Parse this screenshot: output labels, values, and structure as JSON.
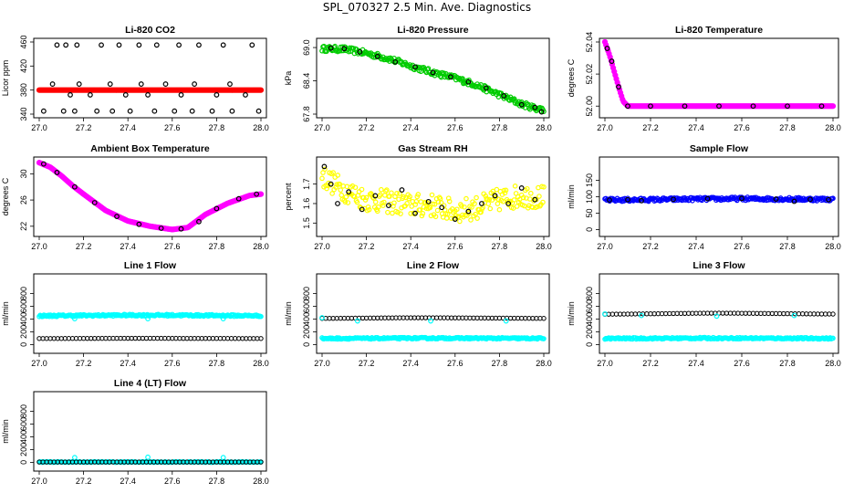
{
  "page": {
    "title": "SPL_070327  2.5 Min. Ave. Diagnostics"
  },
  "chart_data": [
    {
      "type": "scatter",
      "title": "Li-820 CO2",
      "ylabel": "Licor ppm",
      "xlim": [
        27.0,
        28.0
      ],
      "ylim": [
        340,
        460
      ],
      "xticks": [
        "27.0",
        "27.2",
        "27.4",
        "27.6",
        "27.8",
        "28.0"
      ],
      "yticks": [
        "340",
        "380",
        "420",
        "460"
      ],
      "series": [
        {
          "color": "#ff0000",
          "style": "line",
          "x": [
            27.0,
            27.2,
            27.4,
            27.6,
            27.8,
            28.0
          ],
          "y": [
            380,
            380,
            380,
            380,
            380,
            380
          ]
        },
        {
          "color": "#000000",
          "style": "points",
          "x": [
            27.08,
            27.12,
            27.17,
            27.28,
            27.36,
            27.45,
            27.53,
            27.63,
            27.72,
            27.83,
            27.96
          ],
          "y": [
            455,
            455,
            455,
            455,
            455,
            455,
            455,
            455,
            455,
            455,
            455
          ]
        },
        {
          "color": "#000000",
          "style": "points",
          "x": [
            27.02,
            27.11,
            27.16,
            27.26,
            27.33,
            27.41,
            27.52,
            27.61,
            27.69,
            27.78,
            27.87,
            27.99
          ],
          "y": [
            345,
            345,
            345,
            345,
            345,
            345,
            345,
            345,
            345,
            345,
            345,
            345
          ]
        },
        {
          "color": "#000000",
          "style": "points",
          "x": [
            27.06,
            27.14,
            27.18,
            27.23,
            27.32,
            27.39,
            27.46,
            27.49,
            27.57,
            27.64,
            27.7,
            27.8,
            27.86,
            27.93
          ],
          "y": [
            390,
            372,
            390,
            372,
            390,
            372,
            390,
            372,
            390,
            372,
            390,
            372,
            390,
            372
          ]
        }
      ]
    },
    {
      "type": "scatter",
      "title": "Li-820 Pressure",
      "ylabel": "kPa",
      "xlim": [
        27.0,
        28.0
      ],
      "ylim": [
        67.8,
        69.1
      ],
      "xticks": [
        "27.0",
        "27.2",
        "27.4",
        "27.6",
        "27.8",
        "28.0"
      ],
      "yticks": [
        "67.8",
        "68.4",
        "69.0"
      ],
      "series": [
        {
          "color": "#00cc00",
          "style": "band",
          "x": [
            27.0,
            27.1,
            27.2,
            27.3,
            27.4,
            27.5,
            27.6,
            27.7,
            27.8,
            27.9,
            27.95,
            28.0
          ],
          "y": [
            68.98,
            68.97,
            68.9,
            68.8,
            68.67,
            68.55,
            68.45,
            68.32,
            68.15,
            67.98,
            67.92,
            67.88
          ],
          "spread": 0.05
        },
        {
          "color": "#000000",
          "style": "points",
          "x": [
            27.04,
            27.1,
            27.17,
            27.25,
            27.33,
            27.42,
            27.5,
            27.58,
            27.66,
            27.74,
            27.82,
            27.9,
            27.96,
            27.99
          ],
          "y": [
            68.99,
            68.98,
            68.92,
            68.84,
            68.74,
            68.65,
            68.55,
            68.47,
            68.38,
            68.27,
            68.13,
            67.97,
            67.92,
            67.84
          ]
        }
      ]
    },
    {
      "type": "scatter",
      "title": "Li-820 Temperature",
      "ylabel": "degrees C",
      "xlim": [
        27.0,
        28.0
      ],
      "ylim": [
        51.995,
        52.04
      ],
      "xticks": [
        "27.0",
        "27.2",
        "27.4",
        "27.6",
        "27.8",
        "28.0"
      ],
      "yticks": [
        "52.00",
        "52.02",
        "52.04"
      ],
      "series": [
        {
          "color": "#ff00ff",
          "style": "line",
          "x": [
            27.0,
            27.02,
            27.04,
            27.06,
            27.08,
            27.1,
            27.2,
            27.4,
            27.6,
            27.8,
            28.0
          ],
          "y": [
            52.04,
            52.032,
            52.022,
            52.012,
            52.003,
            52.0,
            52.0,
            52.0,
            52.0,
            52.0,
            52.0
          ]
        },
        {
          "color": "#000000",
          "style": "points",
          "x": [
            27.01,
            27.03,
            27.06,
            27.1,
            27.2,
            27.35,
            27.5,
            27.65,
            27.8,
            27.95
          ],
          "y": [
            52.036,
            52.028,
            52.012,
            52.0,
            52.0,
            52.0,
            52.0,
            52.0,
            52.0,
            52.0
          ]
        }
      ]
    },
    {
      "type": "scatter",
      "title": "Ambient Box Temperature",
      "ylabel": "degrees C",
      "xlim": [
        27.0,
        28.0
      ],
      "ylim": [
        21,
        32
      ],
      "xticks": [
        "27.0",
        "27.2",
        "27.4",
        "27.6",
        "27.8",
        "28.0"
      ],
      "yticks": [
        "22",
        "26",
        "30"
      ],
      "series": [
        {
          "color": "#ff00ff",
          "style": "line",
          "x": [
            27.0,
            27.05,
            27.1,
            27.15,
            27.2,
            27.3,
            27.4,
            27.5,
            27.6,
            27.67,
            27.75,
            27.85,
            27.95,
            28.0
          ],
          "y": [
            31.7,
            31.0,
            29.7,
            28.2,
            26.9,
            24.4,
            22.8,
            22.0,
            21.5,
            21.8,
            23.8,
            25.5,
            26.7,
            26.9
          ]
        },
        {
          "color": "#000000",
          "style": "points",
          "x": [
            27.02,
            27.08,
            27.16,
            27.25,
            27.35,
            27.45,
            27.55,
            27.64,
            27.72,
            27.8,
            27.9,
            27.98
          ],
          "y": [
            31.5,
            30.2,
            28.0,
            25.6,
            23.5,
            22.3,
            21.7,
            21.6,
            22.7,
            24.7,
            26.2,
            26.9
          ]
        }
      ]
    },
    {
      "type": "scatter",
      "title": "Gas Stream RH",
      "ylabel": "percent",
      "xlim": [
        27.0,
        28.0
      ],
      "ylim": [
        1.45,
        1.82
      ],
      "xticks": [
        "27.0",
        "27.2",
        "27.4",
        "27.6",
        "27.8",
        "28.0"
      ],
      "yticks": [
        "1.5",
        "1.6",
        "1.7"
      ],
      "series": [
        {
          "color": "#ffff00",
          "style": "band",
          "x": [
            27.0,
            27.1,
            27.2,
            27.3,
            27.4,
            27.5,
            27.6,
            27.7,
            27.8,
            27.9,
            28.0
          ],
          "y": [
            1.74,
            1.67,
            1.62,
            1.61,
            1.59,
            1.59,
            1.56,
            1.58,
            1.62,
            1.64,
            1.63
          ],
          "spread": 0.06
        },
        {
          "color": "#000000",
          "style": "points",
          "x": [
            27.01,
            27.04,
            27.07,
            27.12,
            27.18,
            27.24,
            27.3,
            27.36,
            27.42,
            27.48,
            27.54,
            27.6,
            27.66,
            27.72,
            27.78,
            27.84,
            27.9,
            27.96
          ],
          "y": [
            1.79,
            1.7,
            1.6,
            1.66,
            1.57,
            1.64,
            1.59,
            1.67,
            1.55,
            1.61,
            1.58,
            1.52,
            1.56,
            1.6,
            1.64,
            1.6,
            1.68,
            1.62
          ]
        }
      ]
    },
    {
      "type": "scatter",
      "title": "Sample Flow",
      "ylabel": "ml/min",
      "xlim": [
        27.0,
        28.0
      ],
      "ylim": [
        -10,
        210
      ],
      "xticks": [
        "27.0",
        "27.2",
        "27.4",
        "27.6",
        "27.8",
        "28.0"
      ],
      "yticks": [
        "0",
        "50",
        "100",
        "150"
      ],
      "series": [
        {
          "color": "#0000ff",
          "style": "band",
          "x": [
            27.0,
            27.2,
            27.4,
            27.6,
            27.8,
            28.0
          ],
          "y": [
            90,
            91,
            93,
            94,
            93,
            92
          ],
          "spread": 5
        },
        {
          "color": "#000000",
          "style": "points",
          "x": [
            27.02,
            27.1,
            27.16,
            27.3,
            27.45,
            27.6,
            27.75,
            27.83,
            27.9,
            27.98
          ],
          "y": [
            90,
            91,
            88,
            92,
            94,
            95,
            93,
            86,
            92,
            91
          ]
        }
      ]
    },
    {
      "type": "scatter",
      "title": "Line 1 Flow",
      "ylabel": "ml/min",
      "xlim": [
        27.0,
        28.0
      ],
      "ylim": [
        -80,
        1050
      ],
      "xticks": [
        "27.0",
        "27.2",
        "27.4",
        "27.6",
        "27.8",
        "28.0"
      ],
      "yticks": [
        "0",
        "200",
        "400",
        "600",
        "800"
      ],
      "series": [
        {
          "color": "#00ffff",
          "style": "band",
          "x": [
            27.0,
            27.2,
            27.4,
            27.6,
            27.8,
            28.0
          ],
          "y": [
            450,
            455,
            460,
            460,
            455,
            452
          ],
          "spread": 14
        },
        {
          "color": "#00ffff",
          "style": "points",
          "x": [
            27.16,
            27.49,
            27.83
          ],
          "y": [
            405,
            405,
            405
          ]
        },
        {
          "color": "#000000",
          "style": "line-points",
          "x": [
            27.0,
            27.1,
            27.2,
            27.3,
            27.4,
            27.5,
            27.6,
            27.7,
            27.8,
            27.9,
            28.0
          ],
          "y": [
            95,
            95,
            96,
            97,
            98,
            98,
            97,
            96,
            96,
            95,
            95
          ]
        }
      ]
    },
    {
      "type": "scatter",
      "title": "Line 2 Flow",
      "ylabel": "ml/min",
      "xlim": [
        27.0,
        28.0
      ],
      "ylim": [
        -80,
        1050
      ],
      "xticks": [
        "27.0",
        "27.2",
        "27.4",
        "27.6",
        "27.8",
        "28.0"
      ],
      "yticks": [
        "0",
        "200",
        "400",
        "600",
        "800"
      ],
      "series": [
        {
          "color": "#000000",
          "style": "line-points",
          "x": [
            27.0,
            27.1,
            27.2,
            27.3,
            27.4,
            27.5,
            27.6,
            27.7,
            27.8,
            27.9,
            28.0
          ],
          "y": [
            410,
            412,
            415,
            418,
            420,
            420,
            418,
            416,
            414,
            412,
            410
          ]
        },
        {
          "color": "#00ffff",
          "style": "points",
          "x": [
            27.0,
            27.16,
            27.49,
            27.83
          ],
          "y": [
            420,
            370,
            370,
            370
          ]
        },
        {
          "color": "#00ffff",
          "style": "band",
          "x": [
            27.0,
            27.2,
            27.4,
            27.6,
            27.8,
            28.0
          ],
          "y": [
            95,
            97,
            100,
            100,
            98,
            96
          ],
          "spread": 12
        }
      ]
    },
    {
      "type": "scatter",
      "title": "Line 3 Flow",
      "ylabel": "ml/min",
      "xlim": [
        27.0,
        28.0
      ],
      "ylim": [
        -80,
        1050
      ],
      "xticks": [
        "27.0",
        "27.2",
        "27.4",
        "27.6",
        "27.8",
        "28.0"
      ],
      "yticks": [
        "0",
        "200",
        "400",
        "600",
        "800"
      ],
      "series": [
        {
          "color": "#000000",
          "style": "line-points",
          "x": [
            27.0,
            27.1,
            27.2,
            27.3,
            27.4,
            27.5,
            27.6,
            27.7,
            27.8,
            27.9,
            28.0
          ],
          "y": [
            475,
            478,
            482,
            486,
            490,
            492,
            490,
            487,
            484,
            480,
            478
          ]
        },
        {
          "color": "#00ffff",
          "style": "points",
          "x": [
            27.0,
            27.16,
            27.49,
            27.83
          ],
          "y": [
            480,
            455,
            445,
            455
          ]
        },
        {
          "color": "#00ffff",
          "style": "band",
          "x": [
            27.0,
            27.2,
            27.4,
            27.6,
            27.8,
            28.0
          ],
          "y": [
            95,
            97,
            100,
            100,
            98,
            96
          ],
          "spread": 12
        }
      ]
    },
    {
      "type": "scatter",
      "title": "Line 4 (LT) Flow",
      "ylabel": "ml/min",
      "xlim": [
        27.0,
        28.0
      ],
      "ylim": [
        -80,
        1050
      ],
      "xticks": [
        "27.0",
        "27.2",
        "27.4",
        "27.6",
        "27.8",
        "28.0"
      ],
      "yticks": [
        "0",
        "200",
        "400",
        "600",
        "800"
      ],
      "series": [
        {
          "color": "#00ffff",
          "style": "band",
          "x": [
            27.0,
            27.2,
            27.4,
            27.6,
            27.8,
            28.0
          ],
          "y": [
            5,
            5,
            5,
            5,
            5,
            5
          ],
          "spread": 6
        },
        {
          "color": "#00ffff",
          "style": "points",
          "x": [
            27.16,
            27.49,
            27.83
          ],
          "y": [
            75,
            80,
            75
          ]
        },
        {
          "color": "#000000",
          "style": "line-points",
          "x": [
            27.0,
            27.1,
            27.2,
            27.3,
            27.4,
            27.5,
            27.6,
            27.7,
            27.8,
            27.9,
            28.0
          ],
          "y": [
            5,
            5,
            5,
            5,
            5,
            5,
            5,
            5,
            5,
            5,
            5
          ]
        }
      ]
    }
  ]
}
